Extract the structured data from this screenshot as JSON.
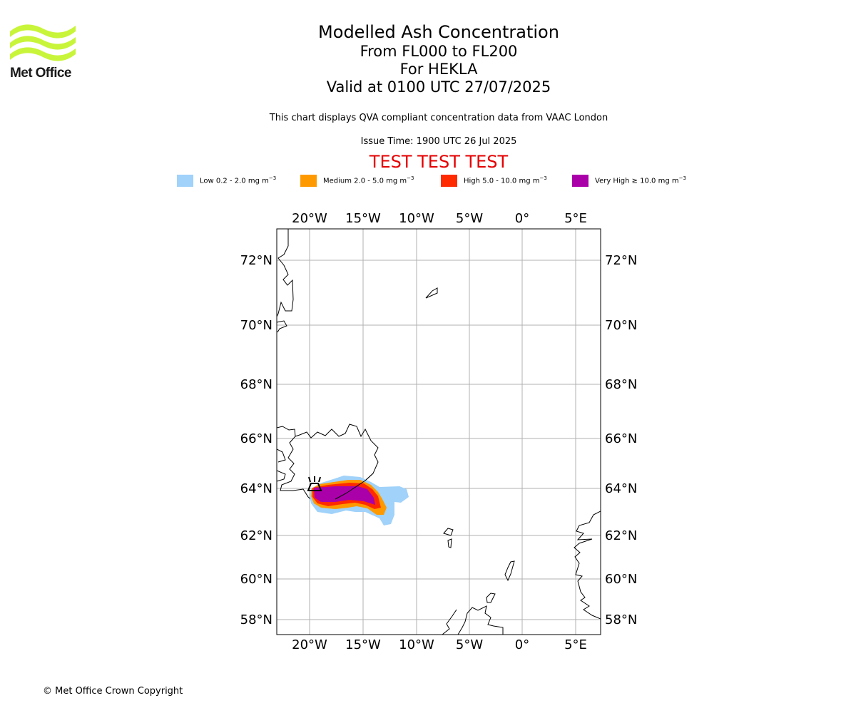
{
  "logo": {
    "text": "Met Office",
    "icon": "met-office-wave-logo",
    "color": "#c8f53a"
  },
  "title": {
    "line1": "Modelled Ash Concentration",
    "line2": "From FL000 to FL200",
    "line3": "For HEKLA",
    "line4": "Valid at 0100 UTC 27/07/2025"
  },
  "subtitle": "This chart displays QVA compliant concentration data from VAAC London",
  "issue_time": "Issue Time: 1900 UTC 26 Jul 2025",
  "test_banner": "TEST TEST TEST",
  "legend": [
    {
      "label": "Low 0.2 - 2.0 mg m",
      "unit_exp": "−3",
      "color": "#a0d2fa"
    },
    {
      "label": "Medium 2.0 - 5.0 mg m",
      "unit_exp": "−3",
      "color": "#ff9900"
    },
    {
      "label": "High 5.0 - 10.0 mg m",
      "unit_exp": "−3",
      "color": "#ff2a00"
    },
    {
      "label": "Very High  ≥  10.0 mg m",
      "unit_exp": "−3",
      "color": "#aa00aa"
    }
  ],
  "map": {
    "lon_ticks": [
      "20°W",
      "15°W",
      "10°W",
      "5°W",
      "0°",
      "5°E"
    ],
    "lat_ticks": [
      "72°N",
      "70°N",
      "68°N",
      "66°N",
      "64°N",
      "62°N",
      "60°N",
      "58°N"
    ],
    "volcano": "HEKLA",
    "volcano_icon": "volcano-icon"
  },
  "footer": "© Met Office Crown Copyright"
}
